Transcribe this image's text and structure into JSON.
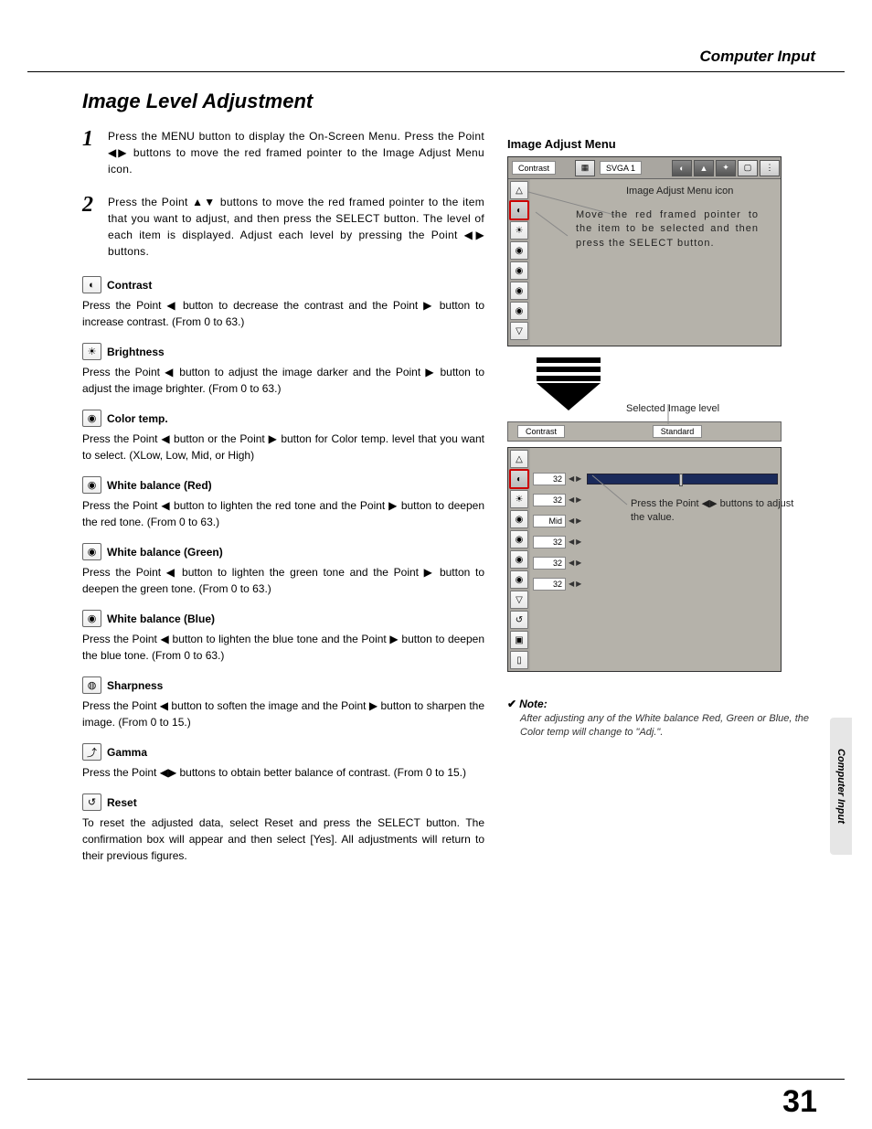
{
  "header": {
    "section": "Computer Input"
  },
  "page": {
    "title": "Image Level Adjustment",
    "number": "31",
    "side_tab": "Computer Input"
  },
  "steps": [
    {
      "num": "1",
      "text": "Press the MENU button to display the On-Screen Menu.  Press the Point ◀▶ buttons to move the red framed pointer to the Image Adjust Menu icon."
    },
    {
      "num": "2",
      "text": "Press the Point ▲▼ buttons to move the red framed pointer to the item that you want to adjust, and then press the SELECT button.  The level of each item is displayed.  Adjust each level by pressing the Point ◀▶ buttons."
    }
  ],
  "adjustments": [
    {
      "icon": "◐",
      "title": "Contrast",
      "desc": "Press the Point ◀ button to decrease the contrast and the Point ▶ button to increase contrast.  (From 0 to 63.)"
    },
    {
      "icon": "☀",
      "title": "Brightness",
      "desc": "Press the Point ◀ button to adjust the image darker and the Point ▶ button to adjust the image brighter.  (From 0 to 63.)"
    },
    {
      "icon": "◉",
      "title": "Color temp.",
      "desc": "Press the Point ◀ button or the Point ▶ button for Color temp. level that you want to select. (XLow, Low, Mid, or High)"
    },
    {
      "icon": "◉",
      "title": "White balance (Red)",
      "desc": "Press the Point ◀ button to lighten the red tone and the Point ▶ button to deepen the red tone.  (From 0 to 63.)"
    },
    {
      "icon": "◉",
      "title": "White balance (Green)",
      "desc": "Press the Point ◀ button to lighten the green tone and the Point ▶ button to deepen the green tone.  (From 0 to 63.)"
    },
    {
      "icon": "◉",
      "title": "White balance (Blue)",
      "desc": "Press the Point ◀ button to lighten the blue tone and the Point ▶ button to deepen the blue tone.  (From 0 to 63.)"
    },
    {
      "icon": "◍",
      "title": "Sharpness",
      "desc": "Press the Point ◀ button to soften the image and the Point ▶ button to sharpen the image.  (From 0 to 15.)"
    },
    {
      "icon": "⤴",
      "title": "Gamma",
      "desc": "Press the Point ◀▶ buttons to obtain better balance of contrast.  (From 0 to 15.)"
    },
    {
      "icon": "↺",
      "title": "Reset",
      "desc": "To reset the adjusted data, select Reset and press the SELECT button.  The confirmation box will appear and then select [Yes].  All adjustments will return to their previous figures."
    }
  ],
  "menu": {
    "title": "Image Adjust Menu",
    "top_label": "Contrast",
    "mode_label": "SVGA 1",
    "callout_icon": "Image Adjust Menu icon",
    "callout_move": "Move the red framed pointer to the item to be selected and then press the SELECT button.",
    "selected_label": "Selected Image level",
    "sel_left": "Contrast",
    "sel_right": "Standard",
    "slider_callout": "Press the Point ◀▶ buttons to adjust the value.",
    "rows": [
      {
        "val": "32",
        "track": true
      },
      {
        "val": "32"
      },
      {
        "val": "Mid"
      },
      {
        "val": "32"
      },
      {
        "val": "32"
      },
      {
        "val": "32"
      }
    ]
  },
  "note": {
    "head": "Note:",
    "text": "After adjusting any of the White balance Red, Green or Blue, the Color temp will change to \"Adj.\"."
  }
}
